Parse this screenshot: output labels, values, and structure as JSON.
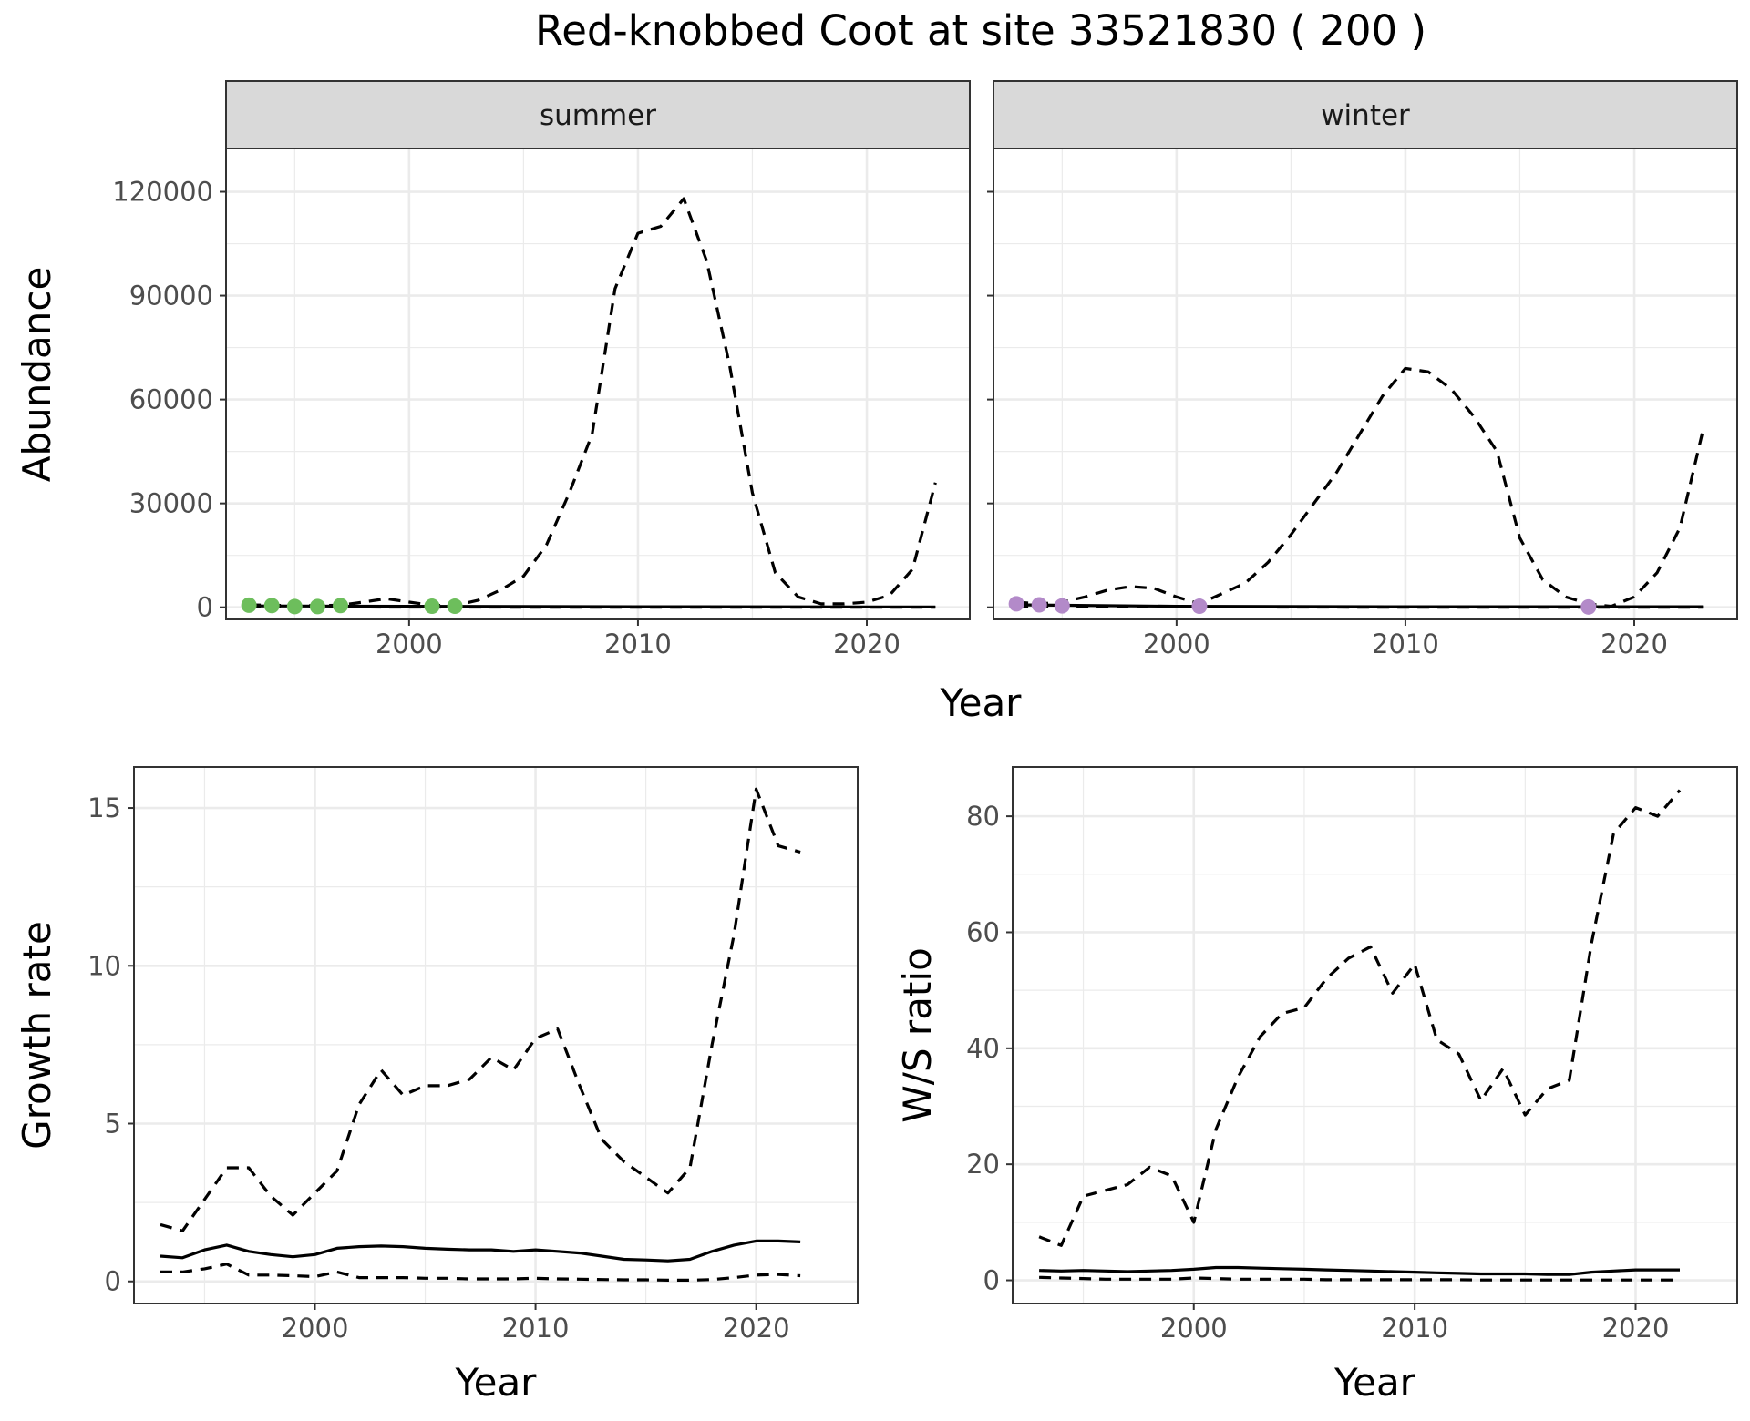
{
  "title": "Red-knobbed Coot at site 33521830 ( 200 )",
  "colors": {
    "summer_points": "#6dbe5c",
    "winter_points": "#b38ac9",
    "line": "#000000",
    "strip_fill": "#d9d9d9",
    "grid": "#ebebeb"
  },
  "top": {
    "xlabel": "Year",
    "ylabel": "Abundance"
  },
  "chart_data": [
    {
      "type": "line",
      "facet": "summer",
      "xlabel": "Year",
      "ylabel": "Abundance",
      "xlim": [
        1992,
        2024.5
      ],
      "ylim": [
        -3500,
        132500
      ],
      "xticks": [
        2000,
        2010,
        2020
      ],
      "yticks": [
        0,
        30000,
        60000,
        90000,
        120000
      ],
      "ytick_labels": [
        "0",
        "30000",
        "60000",
        "90000",
        "120000"
      ],
      "grid": true,
      "series": [
        {
          "style": "solid",
          "x": [
            1993,
            2000,
            2010,
            2020,
            2023
          ],
          "y": [
            400,
            300,
            150,
            100,
            100
          ]
        },
        {
          "style": "dashed-upper",
          "x": [
            1993,
            1994,
            1995,
            1996,
            1997,
            1998,
            1999,
            2000,
            2001,
            2002,
            2003,
            2004,
            2005,
            2006,
            2007,
            2008,
            2009,
            2010,
            2011,
            2012,
            2013,
            2014,
            2015,
            2016,
            2017,
            2018,
            2019,
            2020,
            2021,
            2022,
            2023
          ],
          "y": [
            700,
            600,
            500,
            500,
            600,
            1500,
            2500,
            1500,
            600,
            500,
            2000,
            5000,
            9000,
            18000,
            33000,
            50000,
            92000,
            108000,
            110000,
            118000,
            100000,
            70000,
            33000,
            10000,
            3000,
            1000,
            1000,
            1500,
            3500,
            11000,
            36000
          ]
        },
        {
          "style": "dashed-lower",
          "x": [
            1993,
            2000,
            2010,
            2020,
            2023
          ],
          "y": [
            100,
            50,
            0,
            0,
            0
          ]
        }
      ],
      "points": {
        "x": [
          1993,
          1994,
          1995,
          1996,
          1997,
          2001,
          2002
        ],
        "y": [
          600,
          500,
          200,
          200,
          500,
          300,
          300
        ]
      }
    },
    {
      "type": "line",
      "facet": "winter",
      "xlabel": "Year",
      "ylabel": "Abundance",
      "xlim": [
        1992,
        2024.5
      ],
      "ylim": [
        -3500,
        132500
      ],
      "xticks": [
        2000,
        2010,
        2020
      ],
      "grid": true,
      "series": [
        {
          "style": "solid",
          "x": [
            1993,
            2000,
            2010,
            2020,
            2023
          ],
          "y": [
            700,
            300,
            150,
            150,
            150
          ]
        },
        {
          "style": "dashed-upper",
          "x": [
            1993,
            1994,
            1995,
            1996,
            1997,
            1998,
            1999,
            2000,
            2001,
            2002,
            2003,
            2004,
            2005,
            2006,
            2007,
            2008,
            2009,
            2010,
            2011,
            2012,
            2013,
            2014,
            2015,
            2016,
            2017,
            2018,
            2019,
            2020,
            2021,
            2022,
            2023
          ],
          "y": [
            1500,
            1000,
            1500,
            3000,
            5000,
            6000,
            5500,
            3000,
            1000,
            4000,
            7000,
            13000,
            21000,
            30000,
            39000,
            50000,
            61000,
            69000,
            68000,
            63000,
            55000,
            45000,
            20000,
            8000,
            3000,
            1000,
            300,
            3000,
            10000,
            23000,
            51000
          ]
        },
        {
          "style": "dashed-lower",
          "x": [
            1993,
            2000,
            2010,
            2020,
            2023
          ],
          "y": [
            200,
            100,
            0,
            0,
            0
          ]
        }
      ],
      "points": {
        "x": [
          1993,
          1994,
          1995,
          2001,
          2018
        ],
        "y": [
          1000,
          700,
          400,
          300,
          100
        ]
      }
    },
    {
      "type": "line",
      "xlabel": "Year",
      "ylabel": "Growth rate",
      "xlim": [
        1991.8,
        2024.6
      ],
      "ylim": [
        -0.7,
        16.3
      ],
      "xticks": [
        2000,
        2010,
        2020
      ],
      "yticks": [
        0,
        5,
        10,
        15
      ],
      "ytick_labels": [
        "0",
        "5",
        "10",
        "15"
      ],
      "grid": true,
      "series": [
        {
          "style": "solid",
          "x": [
            1993,
            1994,
            1995,
            1996,
            1997,
            1998,
            1999,
            2000,
            2001,
            2002,
            2003,
            2004,
            2005,
            2006,
            2007,
            2008,
            2009,
            2010,
            2011,
            2012,
            2013,
            2014,
            2015,
            2016,
            2017,
            2018,
            2019,
            2020,
            2021,
            2022
          ],
          "y": [
            0.8,
            0.75,
            1.0,
            1.15,
            0.95,
            0.85,
            0.78,
            0.85,
            1.05,
            1.1,
            1.12,
            1.1,
            1.05,
            1.02,
            1.0,
            1.0,
            0.95,
            1.0,
            0.95,
            0.9,
            0.8,
            0.7,
            0.68,
            0.65,
            0.7,
            0.95,
            1.15,
            1.28,
            1.28,
            1.25
          ]
        },
        {
          "style": "dashed-upper",
          "x": [
            1993,
            1994,
            1995,
            1996,
            1997,
            1998,
            1999,
            2000,
            2001,
            2002,
            2003,
            2004,
            2005,
            2006,
            2007,
            2008,
            2009,
            2010,
            2011,
            2012,
            2013,
            2014,
            2015,
            2016,
            2017,
            2018,
            2019,
            2020,
            2021,
            2022
          ],
          "y": [
            1.8,
            1.6,
            2.6,
            3.6,
            3.6,
            2.7,
            2.1,
            2.8,
            3.5,
            5.6,
            6.7,
            5.9,
            6.2,
            6.2,
            6.4,
            7.1,
            6.7,
            7.7,
            8.0,
            6.2,
            4.5,
            3.8,
            3.3,
            2.8,
            3.6,
            7.5,
            11.0,
            15.6,
            13.8,
            13.6
          ]
        },
        {
          "style": "dashed-lower",
          "x": [
            1993,
            1994,
            1995,
            1996,
            1997,
            1998,
            1999,
            2000,
            2001,
            2002,
            2003,
            2004,
            2005,
            2006,
            2007,
            2008,
            2009,
            2010,
            2011,
            2012,
            2013,
            2014,
            2015,
            2016,
            2017,
            2018,
            2019,
            2020,
            2021,
            2022
          ],
          "y": [
            0.3,
            0.3,
            0.4,
            0.55,
            0.2,
            0.2,
            0.18,
            0.15,
            0.3,
            0.12,
            0.12,
            0.12,
            0.1,
            0.1,
            0.08,
            0.08,
            0.08,
            0.1,
            0.08,
            0.07,
            0.06,
            0.05,
            0.05,
            0.04,
            0.04,
            0.06,
            0.12,
            0.2,
            0.22,
            0.18
          ]
        }
      ]
    },
    {
      "type": "line",
      "xlabel": "Year",
      "ylabel": "W/S ratio",
      "xlim": [
        1991.8,
        2024.6
      ],
      "ylim": [
        -4,
        88.5
      ],
      "xticks": [
        2000,
        2010,
        2020
      ],
      "yticks": [
        0,
        20,
        40,
        60,
        80
      ],
      "ytick_labels": [
        "0",
        "20",
        "40",
        "60",
        "80"
      ],
      "grid": true,
      "series": [
        {
          "style": "solid",
          "x": [
            1993,
            1994,
            1995,
            1996,
            1997,
            1998,
            1999,
            2000,
            2001,
            2002,
            2003,
            2004,
            2005,
            2006,
            2007,
            2008,
            2009,
            2010,
            2011,
            2012,
            2013,
            2014,
            2015,
            2016,
            2017,
            2018,
            2019,
            2020,
            2021,
            2022
          ],
          "y": [
            1.7,
            1.6,
            1.7,
            1.6,
            1.5,
            1.6,
            1.7,
            1.9,
            2.2,
            2.2,
            2.1,
            2.0,
            1.9,
            1.8,
            1.7,
            1.6,
            1.5,
            1.4,
            1.3,
            1.2,
            1.1,
            1.1,
            1.1,
            1.0,
            1.0,
            1.4,
            1.6,
            1.8,
            1.8,
            1.8
          ]
        },
        {
          "style": "dashed-upper",
          "x": [
            1993,
            1994,
            1995,
            1996,
            1997,
            1998,
            1999,
            2000,
            2001,
            2002,
            2003,
            2004,
            2005,
            2006,
            2007,
            2008,
            2009,
            2010,
            2011,
            2012,
            2013,
            2014,
            2015,
            2016,
            2017,
            2018,
            2019,
            2020,
            2021,
            2022
          ],
          "y": [
            7.5,
            6.0,
            14.5,
            15.5,
            16.5,
            19.5,
            18.0,
            10.0,
            26.0,
            35.0,
            42.0,
            46.0,
            47.0,
            52.0,
            55.5,
            57.5,
            49.5,
            54.5,
            41.5,
            39.0,
            31.0,
            36.5,
            28.5,
            33.0,
            34.5,
            58.0,
            77.0,
            81.5,
            80.0,
            84.5
          ]
        },
        {
          "style": "dashed-lower",
          "x": [
            1993,
            1994,
            1995,
            1996,
            1997,
            1998,
            1999,
            2000,
            2001,
            2002,
            2003,
            2004,
            2005,
            2006,
            2007,
            2008,
            2009,
            2010,
            2011,
            2012,
            2013,
            2014,
            2015,
            2016,
            2017,
            2018,
            2019,
            2020,
            2021,
            2022
          ],
          "y": [
            0.5,
            0.4,
            0.3,
            0.2,
            0.2,
            0.2,
            0.2,
            0.4,
            0.3,
            0.2,
            0.2,
            0.2,
            0.2,
            0.1,
            0.1,
            0.1,
            0.1,
            0.1,
            0.1,
            0.1,
            0.05,
            0.05,
            0.05,
            0.05,
            0.05,
            0.05,
            0.05,
            0.05,
            0.05,
            0.05
          ]
        }
      ]
    }
  ]
}
